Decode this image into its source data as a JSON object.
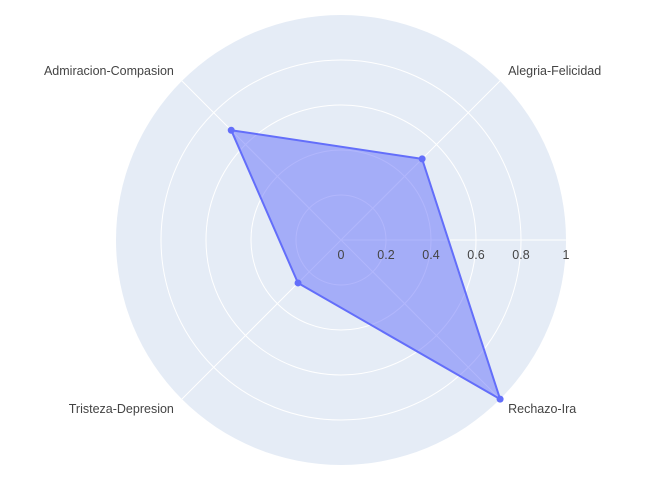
{
  "chart_data": {
    "type": "radar",
    "title": "",
    "axes": [
      "Alegria-Felicidad",
      "Rechazo-Ira",
      "Tristeza-Depresion",
      "Admiracion-Compasion"
    ],
    "series": [
      {
        "values": [
          0.51,
          1.0,
          0.27,
          0.69
        ]
      }
    ],
    "radial_range": [
      0,
      1
    ],
    "radial_ticks": [
      "0",
      "0.2",
      "0.4",
      "0.6",
      "0.8",
      "1"
    ],
    "grid": true,
    "legend": "none",
    "colors": {
      "background": "#E5ECF6",
      "grid": "#FFFFFF",
      "series_line": "#636EFA",
      "series_fill": "#636EFA",
      "label_text": "#444444"
    }
  }
}
